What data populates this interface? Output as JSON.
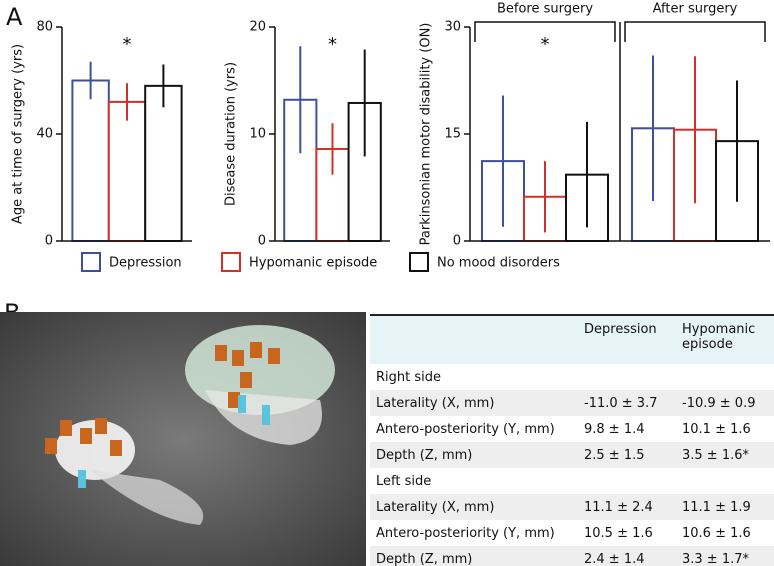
{
  "panel_labels": [
    "A",
    "B"
  ],
  "chart_data": [
    {
      "type": "bar",
      "ylabel": "Age at time of surgery (yrs)",
      "annotation": "*",
      "categories": [
        null
      ],
      "ylim": [
        0,
        80
      ],
      "yticks": [
        0,
        40,
        80
      ],
      "series": [
        {
          "name": "Depression",
          "color": "#3f4fa0",
          "values": [
            60
          ],
          "errors": [
            7
          ]
        },
        {
          "name": "Hypomanic episode",
          "color": "#d0312d",
          "values": [
            52
          ],
          "errors": [
            7
          ]
        },
        {
          "name": "No mood disorders",
          "color": "#111111",
          "values": [
            58
          ],
          "errors": [
            8
          ]
        }
      ]
    },
    {
      "type": "bar",
      "ylabel": "Disease duration (yrs)",
      "annotation": "*",
      "categories": [
        null
      ],
      "ylim": [
        0,
        20
      ],
      "yticks": [
        0,
        10,
        20
      ],
      "series": [
        {
          "color": "#3f4fa0",
          "values": [
            13.2
          ],
          "errors": [
            5
          ]
        },
        {
          "color": "#d0312d",
          "values": [
            8.6
          ],
          "errors": [
            2.4
          ]
        },
        {
          "color": "#111111",
          "values": [
            12.9
          ],
          "errors": [
            5
          ]
        }
      ]
    },
    {
      "type": "bar",
      "ylabel": "Parkinsonian motor disability (ON)",
      "annotation": "*",
      "categories": [
        "Before surgery",
        "After surgery"
      ],
      "ylim": [
        0,
        30
      ],
      "yticks": [
        0,
        15,
        30
      ],
      "series": [
        {
          "color": "#3f4fa0",
          "values": [
            11.2,
            15.8
          ],
          "errors": [
            9.2,
            10.2
          ]
        },
        {
          "color": "#d0312d",
          "values": [
            6.2,
            15.6
          ],
          "errors": [
            5,
            10.3
          ]
        },
        {
          "color": "#111111",
          "values": [
            9.3,
            14
          ],
          "errors": [
            7.4,
            8.5
          ]
        }
      ]
    }
  ],
  "table": {
    "columns": [
      "Depression",
      "Hypomanic episode"
    ],
    "sections": [
      {
        "title": "Right side",
        "rows": [
          [
            "Laterality (X, mm)",
            "-11.0 ± 3.7",
            "-10.9 ± 0.9"
          ],
          [
            "Antero-posteriority (Y, mm)",
            "9.8 ± 1.4",
            "10.1 ± 1.6"
          ],
          [
            "Depth (Z, mm)",
            "2.5 ± 1.5",
            "3.5 ± 1.6*"
          ]
        ]
      },
      {
        "title": "Left side",
        "rows": [
          [
            "Laterality (X, mm)",
            "11.1 ± 2.4",
            "11.1 ± 1.9"
          ],
          [
            "Antero-posteriority (Y, mm)",
            "10.5 ± 1.6",
            "10.6 ± 1.6"
          ],
          [
            "Depth (Z, mm)",
            "2.4 ± 1.4",
            "3.3 ± 1.7*"
          ]
        ]
      }
    ]
  }
}
